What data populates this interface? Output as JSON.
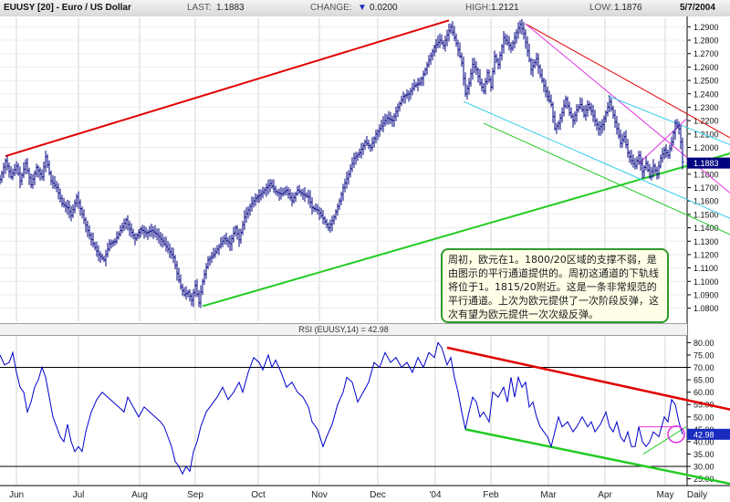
{
  "header": {
    "title": "EUUSY [20] - Euro / US Dollar",
    "last_label": "LAST:",
    "last_value": "1.1883",
    "change_label": "CHANGE:",
    "change_arrow": "▼",
    "change_value": "0.0200",
    "high_label": "HIGH:",
    "high_value": "1.2121",
    "low_label": "LOW:",
    "low_value": "1.1876",
    "date": "5/7/2004"
  },
  "note_text": "周初，欧元在1。1800/20区域的支撑不弱，是由图示的平行通道提供的。周初这通道的下轨线将位于1。1815/20附近。这是一条非常规范的平行通道。上次为欧元提供了一次阶段反弹，这次有望为欧元提供一次次级反弹。",
  "rsi_title": "RSI (EUUSY,14) = 42.98",
  "colors": {
    "price_line": "#000080",
    "rsi_line": "#0000cc",
    "upper_trend": "#e00000",
    "lower_trend": "#22cc22",
    "cyan_channel": "#33ccee",
    "magenta_channel": "#dd33dd",
    "note_border": "#2e9a2e"
  },
  "chart_data": [
    {
      "type": "line",
      "series": [],
      "x_labels": [
        "Jun",
        "Jul",
        "Aug",
        "Sep",
        "Oct",
        "Nov",
        "Dec",
        "'04",
        "Feb",
        "Mar",
        "Apr",
        "May",
        "Daily"
      ],
      "y_ticks": [
        "1.2900",
        "1.2800",
        "1.2700",
        "1.2600",
        "1.2500",
        "1.2400",
        "1.2300",
        "1.2200",
        "1.2100",
        "1.2000",
        "1.1900",
        "1.1800",
        "1.1700",
        "1.1600",
        "1.1500",
        "1.1400",
        "1.1300",
        "1.1200",
        "1.1100",
        "1.1000",
        "1.0900",
        "1.0800"
      ],
      "ylim": [
        1.075,
        1.295
      ],
      "last_value_marker": "1.1883",
      "price_path": [
        [
          0,
          1.176
        ],
        [
          6,
          1.19
        ],
        [
          12,
          1.178
        ],
        [
          18,
          1.186
        ],
        [
          22,
          1.175
        ],
        [
          28,
          1.188
        ],
        [
          34,
          1.172
        ],
        [
          40,
          1.185
        ],
        [
          46,
          1.178
        ],
        [
          50,
          1.193
        ],
        [
          56,
          1.175
        ],
        [
          62,
          1.17
        ],
        [
          68,
          1.158
        ],
        [
          74,
          1.155
        ],
        [
          78,
          1.149
        ],
        [
          84,
          1.163
        ],
        [
          90,
          1.15
        ],
        [
          96,
          1.138
        ],
        [
          102,
          1.128
        ],
        [
          108,
          1.12
        ],
        [
          114,
          1.116
        ],
        [
          120,
          1.128
        ],
        [
          126,
          1.13
        ],
        [
          132,
          1.138
        ],
        [
          138,
          1.146
        ],
        [
          142,
          1.139
        ],
        [
          148,
          1.132
        ],
        [
          154,
          1.139
        ],
        [
          160,
          1.136
        ],
        [
          166,
          1.138
        ],
        [
          172,
          1.135
        ],
        [
          178,
          1.13
        ],
        [
          184,
          1.124
        ],
        [
          190,
          1.118
        ],
        [
          194,
          1.106
        ],
        [
          198,
          1.096
        ],
        [
          202,
          1.09
        ],
        [
          206,
          1.092
        ],
        [
          210,
          1.086
        ],
        [
          214,
          1.097
        ],
        [
          218,
          1.084
        ],
        [
          222,
          1.1
        ],
        [
          228,
          1.116
        ],
        [
          234,
          1.12
        ],
        [
          240,
          1.126
        ],
        [
          246,
          1.132
        ],
        [
          252,
          1.128
        ],
        [
          258,
          1.14
        ],
        [
          262,
          1.131
        ],
        [
          268,
          1.148
        ],
        [
          274,
          1.156
        ],
        [
          280,
          1.162
        ],
        [
          286,
          1.165
        ],
        [
          292,
          1.17
        ],
        [
          296,
          1.173
        ],
        [
          302,
          1.167
        ],
        [
          308,
          1.165
        ],
        [
          314,
          1.168
        ],
        [
          320,
          1.16
        ],
        [
          326,
          1.168
        ],
        [
          332,
          1.165
        ],
        [
          338,
          1.163
        ],
        [
          342,
          1.155
        ],
        [
          348,
          1.153
        ],
        [
          354,
          1.147
        ],
        [
          360,
          1.14
        ],
        [
          366,
          1.148
        ],
        [
          372,
          1.16
        ],
        [
          376,
          1.17
        ],
        [
          382,
          1.18
        ],
        [
          388,
          1.192
        ],
        [
          394,
          1.196
        ],
        [
          400,
          1.204
        ],
        [
          406,
          1.2
        ],
        [
          412,
          1.21
        ],
        [
          418,
          1.216
        ],
        [
          424,
          1.222
        ],
        [
          430,
          1.22
        ],
        [
          436,
          1.23
        ],
        [
          442,
          1.238
        ],
        [
          448,
          1.24
        ],
        [
          454,
          1.246
        ],
        [
          460,
          1.248
        ],
        [
          466,
          1.258
        ],
        [
          470,
          1.265
        ],
        [
          476,
          1.275
        ],
        [
          482,
          1.28
        ],
        [
          486,
          1.276
        ],
        [
          490,
          1.284
        ],
        [
          494,
          1.29
        ],
        [
          498,
          1.282
        ],
        [
          502,
          1.273
        ],
        [
          506,
          1.263
        ],
        [
          510,
          1.24
        ],
        [
          514,
          1.248
        ],
        [
          518,
          1.262
        ],
        [
          522,
          1.258
        ],
        [
          526,
          1.248
        ],
        [
          530,
          1.242
        ],
        [
          534,
          1.256
        ],
        [
          538,
          1.245
        ],
        [
          542,
          1.268
        ],
        [
          546,
          1.262
        ],
        [
          552,
          1.282
        ],
        [
          556,
          1.278
        ],
        [
          560,
          1.274
        ],
        [
          566,
          1.286
        ],
        [
          570,
          1.292
        ],
        [
          574,
          1.285
        ],
        [
          578,
          1.272
        ],
        [
          582,
          1.258
        ],
        [
          588,
          1.266
        ],
        [
          592,
          1.254
        ],
        [
          596,
          1.246
        ],
        [
          600,
          1.238
        ],
        [
          604,
          1.232
        ],
        [
          608,
          1.214
        ],
        [
          612,
          1.218
        ],
        [
          616,
          1.226
        ],
        [
          620,
          1.236
        ],
        [
          624,
          1.226
        ],
        [
          628,
          1.22
        ],
        [
          632,
          1.228
        ],
        [
          636,
          1.232
        ],
        [
          640,
          1.224
        ],
        [
          644,
          1.232
        ],
        [
          648,
          1.227
        ],
        [
          652,
          1.22
        ],
        [
          656,
          1.214
        ],
        [
          660,
          1.217
        ],
        [
          664,
          1.226
        ],
        [
          668,
          1.234
        ],
        [
          672,
          1.224
        ],
        [
          676,
          1.214
        ],
        [
          680,
          1.203
        ],
        [
          684,
          1.208
        ],
        [
          688,
          1.196
        ],
        [
          692,
          1.19
        ],
        [
          696,
          1.186
        ],
        [
          700,
          1.194
        ],
        [
          704,
          1.182
        ],
        [
          708,
          1.188
        ],
        [
          712,
          1.178
        ],
        [
          716,
          1.186
        ],
        [
          720,
          1.18
        ],
        [
          724,
          1.192
        ],
        [
          728,
          1.198
        ],
        [
          732,
          1.194
        ],
        [
          736,
          1.204
        ],
        [
          740,
          1.218
        ],
        [
          744,
          1.214
        ],
        [
          746,
          1.204
        ],
        [
          748,
          1.189
        ]
      ]
    },
    {
      "type": "line",
      "series": [],
      "y_ticks": [
        "80.00",
        "75.00",
        "70.00",
        "65.00",
        "60.00",
        "55.00",
        "50.00",
        "45.00",
        "40.00",
        "35.00",
        "30.00",
        "25.00"
      ],
      "ylim": [
        23,
        82
      ],
      "reference_lines": [
        70,
        30
      ],
      "last_value_marker": "42.98",
      "rsi_path": [
        [
          0,
          75
        ],
        [
          5,
          71
        ],
        [
          10,
          72
        ],
        [
          14,
          76
        ],
        [
          18,
          68
        ],
        [
          22,
          62
        ],
        [
          26,
          60
        ],
        [
          30,
          52
        ],
        [
          34,
          56
        ],
        [
          38,
          62
        ],
        [
          42,
          65
        ],
        [
          46,
          70
        ],
        [
          50,
          66
        ],
        [
          54,
          58
        ],
        [
          58,
          50
        ],
        [
          62,
          46
        ],
        [
          66,
          42
        ],
        [
          70,
          40
        ],
        [
          74,
          47
        ],
        [
          78,
          40
        ],
        [
          82,
          36
        ],
        [
          86,
          38
        ],
        [
          90,
          36
        ],
        [
          94,
          44
        ],
        [
          100,
          52
        ],
        [
          106,
          57
        ],
        [
          112,
          60
        ],
        [
          118,
          58
        ],
        [
          124,
          56
        ],
        [
          130,
          54
        ],
        [
          136,
          52
        ],
        [
          140,
          58
        ],
        [
          146,
          54
        ],
        [
          152,
          50
        ],
        [
          158,
          54
        ],
        [
          164,
          52
        ],
        [
          170,
          50
        ],
        [
          176,
          48
        ],
        [
          180,
          46
        ],
        [
          184,
          42
        ],
        [
          188,
          38
        ],
        [
          192,
          32
        ],
        [
          196,
          30
        ],
        [
          200,
          27
        ],
        [
          204,
          30
        ],
        [
          208,
          28
        ],
        [
          212,
          36
        ],
        [
          216,
          40
        ],
        [
          220,
          46
        ],
        [
          226,
          52
        ],
        [
          232,
          55
        ],
        [
          238,
          58
        ],
        [
          244,
          62
        ],
        [
          250,
          57
        ],
        [
          256,
          60
        ],
        [
          262,
          64
        ],
        [
          266,
          60
        ],
        [
          272,
          68
        ],
        [
          278,
          74
        ],
        [
          284,
          72
        ],
        [
          288,
          69
        ],
        [
          294,
          75
        ],
        [
          298,
          70
        ],
        [
          302,
          73
        ],
        [
          308,
          68
        ],
        [
          314,
          62
        ],
        [
          320,
          64
        ],
        [
          326,
          60
        ],
        [
          332,
          58
        ],
        [
          338,
          54
        ],
        [
          342,
          48
        ],
        [
          348,
          45
        ],
        [
          354,
          38
        ],
        [
          358,
          42
        ],
        [
          364,
          47
        ],
        [
          370,
          55
        ],
        [
          376,
          60
        ],
        [
          380,
          66
        ],
        [
          386,
          64
        ],
        [
          392,
          56
        ],
        [
          398,
          60
        ],
        [
          404,
          64
        ],
        [
          410,
          72
        ],
        [
          416,
          70
        ],
        [
          422,
          76
        ],
        [
          428,
          72
        ],
        [
          434,
          74
        ],
        [
          440,
          70
        ],
        [
          446,
          72
        ],
        [
          452,
          68
        ],
        [
          458,
          74
        ],
        [
          464,
          70
        ],
        [
          470,
          76
        ],
        [
          476,
          74
        ],
        [
          480,
          80
        ],
        [
          484,
          78
        ],
        [
          490,
          71
        ],
        [
          494,
          74
        ],
        [
          498,
          66
        ],
        [
          502,
          60
        ],
        [
          506,
          52
        ],
        [
          510,
          45
        ],
        [
          514,
          52
        ],
        [
          518,
          58
        ],
        [
          522,
          56
        ],
        [
          526,
          50
        ],
        [
          530,
          52
        ],
        [
          536,
          48
        ],
        [
          540,
          60
        ],
        [
          546,
          58
        ],
        [
          552,
          62
        ],
        [
          556,
          56
        ],
        [
          560,
          66
        ],
        [
          564,
          58
        ],
        [
          568,
          66
        ],
        [
          572,
          62
        ],
        [
          576,
          64
        ],
        [
          580,
          54
        ],
        [
          584,
          56
        ],
        [
          588,
          50
        ],
        [
          592,
          46
        ],
        [
          596,
          44
        ],
        [
          600,
          42
        ],
        [
          604,
          38
        ],
        [
          608,
          44
        ],
        [
          612,
          50
        ],
        [
          616,
          46
        ],
        [
          622,
          48
        ],
        [
          628,
          44
        ],
        [
          632,
          46
        ],
        [
          638,
          50
        ],
        [
          644,
          46
        ],
        [
          648,
          48
        ],
        [
          652,
          44
        ],
        [
          658,
          47
        ],
        [
          664,
          52
        ],
        [
          668,
          46
        ],
        [
          672,
          44
        ],
        [
          676,
          48
        ],
        [
          680,
          42
        ],
        [
          684,
          40
        ],
        [
          688,
          44
        ],
        [
          692,
          38
        ],
        [
          696,
          38
        ],
        [
          700,
          46
        ],
        [
          704,
          40
        ],
        [
          708,
          38
        ],
        [
          712,
          40
        ],
        [
          716,
          44
        ],
        [
          722,
          42
        ],
        [
          728,
          50
        ],
        [
          732,
          48
        ],
        [
          736,
          57
        ],
        [
          740,
          55
        ],
        [
          744,
          48
        ],
        [
          748,
          42.98
        ]
      ]
    }
  ]
}
